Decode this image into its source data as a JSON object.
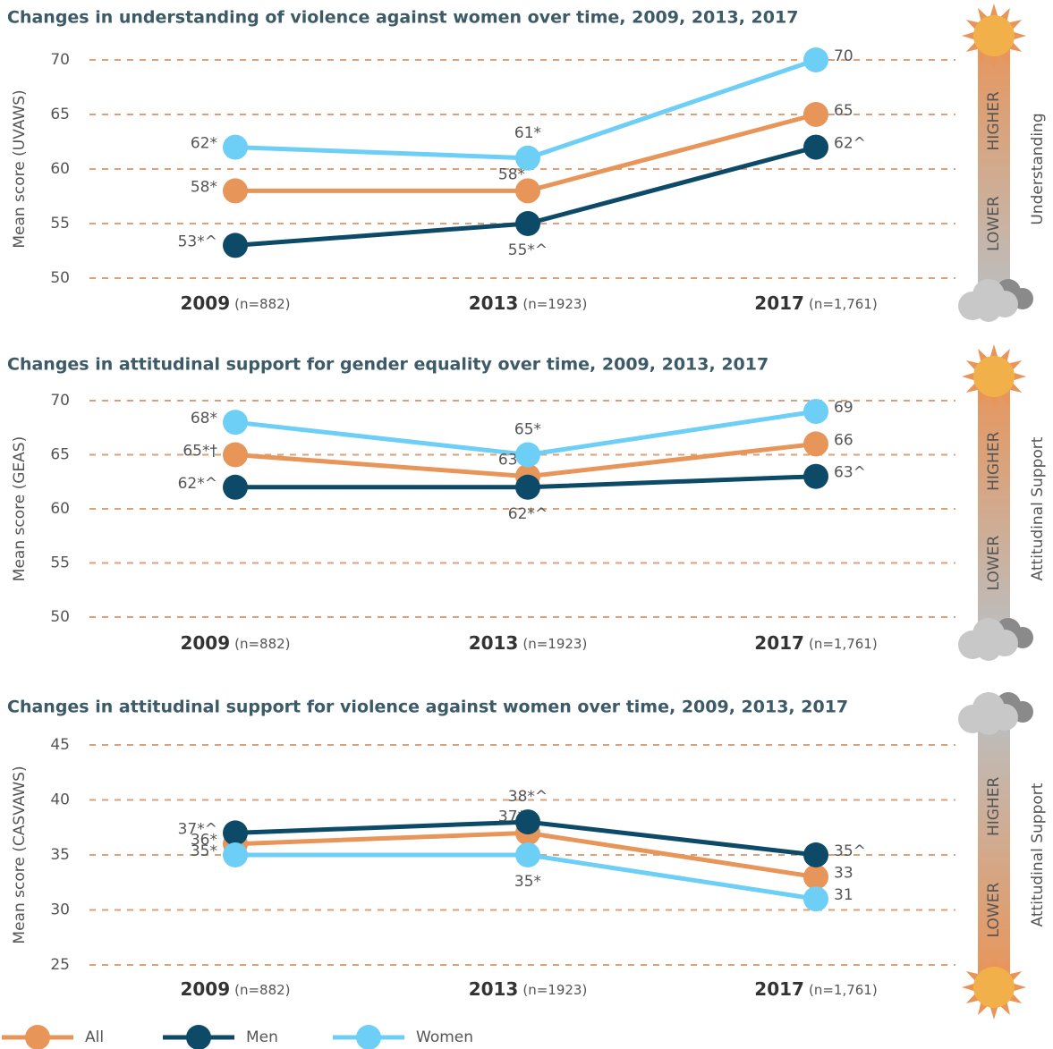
{
  "chart_data": [
    {
      "type": "line",
      "title": "Changes in understanding of violence against women over time, 2009, 2013, 2017",
      "ylabel": "Mean score (UVAWS)",
      "categories": [
        "2009",
        "2013",
        "2017"
      ],
      "category_notes": [
        "(n=882)",
        "(n=1923)",
        "(n=1,761)"
      ],
      "ylim": [
        50,
        70
      ],
      "yticks": [
        50,
        55,
        60,
        65,
        70
      ],
      "grid": true,
      "scale_labels": {
        "higher": "HIGHER",
        "lower": "LOWER",
        "side_label": "Understanding"
      },
      "series": [
        {
          "name": "All",
          "color": "#e8955a",
          "values": [
            58,
            58,
            65
          ],
          "value_labels": [
            "58*",
            "58*",
            "65"
          ]
        },
        {
          "name": "Men",
          "color": "#0c4a68",
          "values": [
            53,
            55,
            62
          ],
          "value_labels": [
            "53*^",
            "55*^",
            "62^"
          ]
        },
        {
          "name": "Women",
          "color": "#6dcff6",
          "values": [
            62,
            61,
            70
          ],
          "value_labels": [
            "62*",
            "61*",
            "70"
          ]
        }
      ]
    },
    {
      "type": "line",
      "title": "Changes in attitudinal support for gender equality over time, 2009, 2013, 2017",
      "ylabel": "Mean score (GEAS)",
      "categories": [
        "2009",
        "2013",
        "2017"
      ],
      "category_notes": [
        "(n=882)",
        "(n=1923)",
        "(n=1,761)"
      ],
      "ylim": [
        50,
        70
      ],
      "yticks": [
        50,
        55,
        60,
        65,
        70
      ],
      "grid": true,
      "scale_labels": {
        "higher": "HIGHER",
        "lower": "LOWER",
        "side_label": "Attitudinal Support"
      },
      "series": [
        {
          "name": "All",
          "color": "#e8955a",
          "values": [
            65,
            63,
            66
          ],
          "value_labels": [
            "65*†",
            "63*",
            "66"
          ]
        },
        {
          "name": "Men",
          "color": "#0c4a68",
          "values": [
            62,
            62,
            63
          ],
          "value_labels": [
            "62*^",
            "62*^",
            "63^"
          ]
        },
        {
          "name": "Women",
          "color": "#6dcff6",
          "values": [
            68,
            65,
            69
          ],
          "value_labels": [
            "68*",
            "65*",
            "69"
          ]
        }
      ]
    },
    {
      "type": "line",
      "title": "Changes in attitudinal support for violence against women over time, 2009, 2013, 2017",
      "ylabel": "Mean score (CASVAWS)",
      "categories": [
        "2009",
        "2013",
        "2017"
      ],
      "category_notes": [
        "(n=882)",
        "(n=1923)",
        "(n=1,761)"
      ],
      "ylim": [
        25,
        45
      ],
      "yticks": [
        25,
        30,
        35,
        40,
        45
      ],
      "grid": true,
      "scale_labels": {
        "higher": "HIGHER",
        "lower": "LOWER",
        "side_label": "Attitudinal Support"
      },
      "series": [
        {
          "name": "All",
          "color": "#e8955a",
          "values": [
            36,
            37,
            33
          ],
          "value_labels": [
            "36*",
            "37*",
            "33"
          ]
        },
        {
          "name": "Men",
          "color": "#0c4a68",
          "values": [
            37,
            38,
            35
          ],
          "value_labels": [
            "37*^",
            "38*^",
            "35^"
          ]
        },
        {
          "name": "Women",
          "color": "#6dcff6",
          "values": [
            35,
            35,
            31
          ],
          "value_labels": [
            "35*",
            "35*",
            "31"
          ]
        }
      ]
    }
  ]
}
